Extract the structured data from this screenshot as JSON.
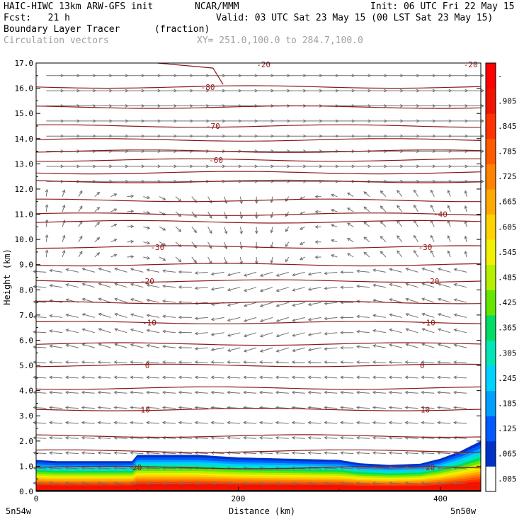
{
  "header": {
    "model": "HAIC-HIWC 13km ARW-GFS init",
    "org": "NCAR/MMM",
    "init": "Init: 06 UTC Fri 22 May 15",
    "fcst": "Fcst:   21 h",
    "valid": "Valid: 03 UTC Sat 23 May 15 (00 LST Sat 23 May 15)",
    "field1": "Boundary Layer Tracer",
    "field1_units": "(fraction)",
    "field2": "Circulation vectors",
    "xsec": "XY= 251.0,100.0 to 284.7,100.0"
  },
  "chart_data": {
    "type": "heatmap",
    "ylabel": "Height (km)",
    "xlabel": "Distance (km)",
    "ylim": [
      0,
      17
    ],
    "xlim": [
      0,
      440
    ],
    "yticks": [
      "0.0",
      "1.0",
      "2.0",
      "3.0",
      "4.0",
      "5.0",
      "6.0",
      "7.0",
      "8.0",
      "9.0",
      "10.0",
      "11.0",
      "12.0",
      "13.0",
      "14.0",
      "15.0",
      "16.0",
      "17.0"
    ],
    "xticks": [
      "0",
      "200",
      "400"
    ],
    "xtick_values": [
      0,
      200,
      400
    ],
    "endpoints": {
      "left": "5n54w",
      "right": "5n50w"
    },
    "colorbar": {
      "labels": [
        ".005",
        ".065",
        ".125",
        ".185",
        ".245",
        ".305",
        ".365",
        ".425",
        ".485",
        ".545",
        ".605",
        ".665",
        ".725",
        ".785",
        ".845",
        ".905",
        "-"
      ],
      "colors": [
        "#ffffff",
        "#0032c8",
        "#005aff",
        "#00a0ff",
        "#00d2ff",
        "#00e6b4",
        "#00dc64",
        "#64e600",
        "#b4f000",
        "#f0f000",
        "#ffd200",
        "#ffaa00",
        "#ff8200",
        "#ff5a00",
        "#ff3200",
        "#f01400",
        "#ff0000"
      ]
    },
    "temperature_contours": {
      "color": "#8b1a1a",
      "labels": [
        {
          "text": "-80",
          "x": 170,
          "y": 16.05
        },
        {
          "text": "-70",
          "x": 175,
          "y": 14.5
        },
        {
          "text": "-60",
          "x": 178,
          "y": 13.15
        },
        {
          "text": "-40",
          "x": 400,
          "y": 11.0
        },
        {
          "text": "-30",
          "x": 120,
          "y": 9.7
        },
        {
          "text": "-30",
          "x": 385,
          "y": 9.7
        },
        {
          "text": "-20",
          "x": 110,
          "y": 8.35
        },
        {
          "text": "-20",
          "x": 392,
          "y": 8.35
        },
        {
          "text": "-10",
          "x": 112,
          "y": 6.7
        },
        {
          "text": "-10",
          "x": 388,
          "y": 6.7
        },
        {
          "text": "0",
          "x": 110,
          "y": 5.0
        },
        {
          "text": "0",
          "x": 382,
          "y": 5.0
        },
        {
          "text": "10",
          "x": 108,
          "y": 3.25
        },
        {
          "text": "10",
          "x": 385,
          "y": 3.25
        },
        {
          "text": "-20",
          "x": 225,
          "y": 16.95
        },
        {
          "text": "-20",
          "x": 430,
          "y": 16.95
        },
        {
          "text": "20",
          "x": 100,
          "y": 0.95
        },
        {
          "text": "20",
          "x": 390,
          "y": 0.95
        }
      ]
    },
    "tracer_top_km": [
      {
        "x": 0,
        "h": 1.25
      },
      {
        "x": 20,
        "h": 1.2
      },
      {
        "x": 60,
        "h": 1.2
      },
      {
        "x": 95,
        "h": 1.2
      },
      {
        "x": 100,
        "h": 1.45
      },
      {
        "x": 160,
        "h": 1.45
      },
      {
        "x": 200,
        "h": 1.35
      },
      {
        "x": 250,
        "h": 1.3
      },
      {
        "x": 300,
        "h": 1.25
      },
      {
        "x": 320,
        "h": 1.12
      },
      {
        "x": 350,
        "h": 1.05
      },
      {
        "x": 380,
        "h": 1.1
      },
      {
        "x": 400,
        "h": 1.3
      },
      {
        "x": 420,
        "h": 1.6
      },
      {
        "x": 440,
        "h": 2.0
      }
    ]
  }
}
